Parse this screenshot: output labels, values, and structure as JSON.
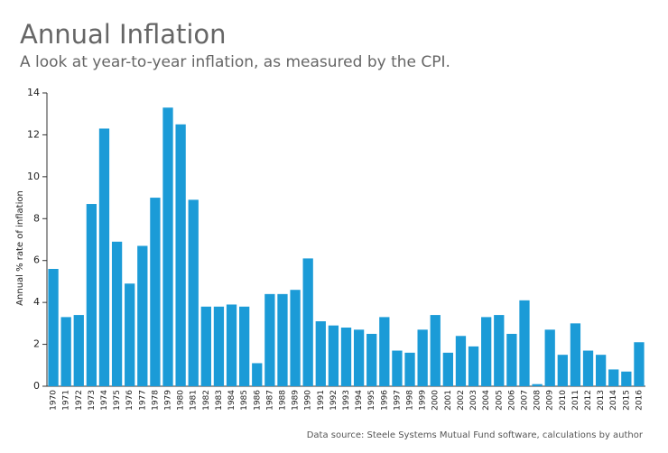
{
  "chart_data": {
    "type": "bar",
    "title": "Annual Inflation",
    "subtitle": "A look at year-to-year inflation, as measured by the CPI.",
    "y_label": "Annual % rate of inflation",
    "source": "Data source: Steele Systems Mutual Fund software, calculations by author",
    "categories": [
      "1970",
      "1971",
      "1972",
      "1973",
      "1974",
      "1975",
      "1976",
      "1977",
      "1978",
      "1979",
      "1980",
      "1981",
      "1982",
      "1983",
      "1984",
      "1985",
      "1986",
      "1987",
      "1988",
      "1989",
      "1990",
      "1991",
      "1992",
      "1993",
      "1994",
      "1995",
      "1996",
      "1997",
      "1998",
      "1999",
      "2000",
      "2001",
      "2002",
      "2003",
      "2004",
      "2005",
      "2006",
      "2007",
      "2008",
      "2009",
      "2010",
      "2011",
      "2012",
      "2013",
      "2014",
      "2015",
      "2016"
    ],
    "values": [
      5.6,
      3.3,
      3.4,
      8.7,
      12.3,
      6.9,
      4.9,
      6.7,
      9.0,
      13.3,
      12.5,
      8.9,
      3.8,
      3.8,
      3.9,
      3.8,
      1.1,
      4.4,
      4.4,
      4.6,
      6.1,
      3.1,
      2.9,
      2.8,
      2.7,
      2.5,
      3.3,
      1.7,
      1.6,
      2.7,
      3.4,
      1.6,
      2.4,
      1.9,
      3.3,
      3.4,
      2.5,
      4.1,
      0.1,
      2.7,
      1.5,
      3.0,
      1.7,
      1.5,
      0.8,
      0.7,
      2.1
    ],
    "color": "#1b9bd7",
    "ylim": [
      0,
      14
    ],
    "yticks": [
      0,
      2,
      4,
      6,
      8,
      10,
      12,
      14
    ]
  }
}
